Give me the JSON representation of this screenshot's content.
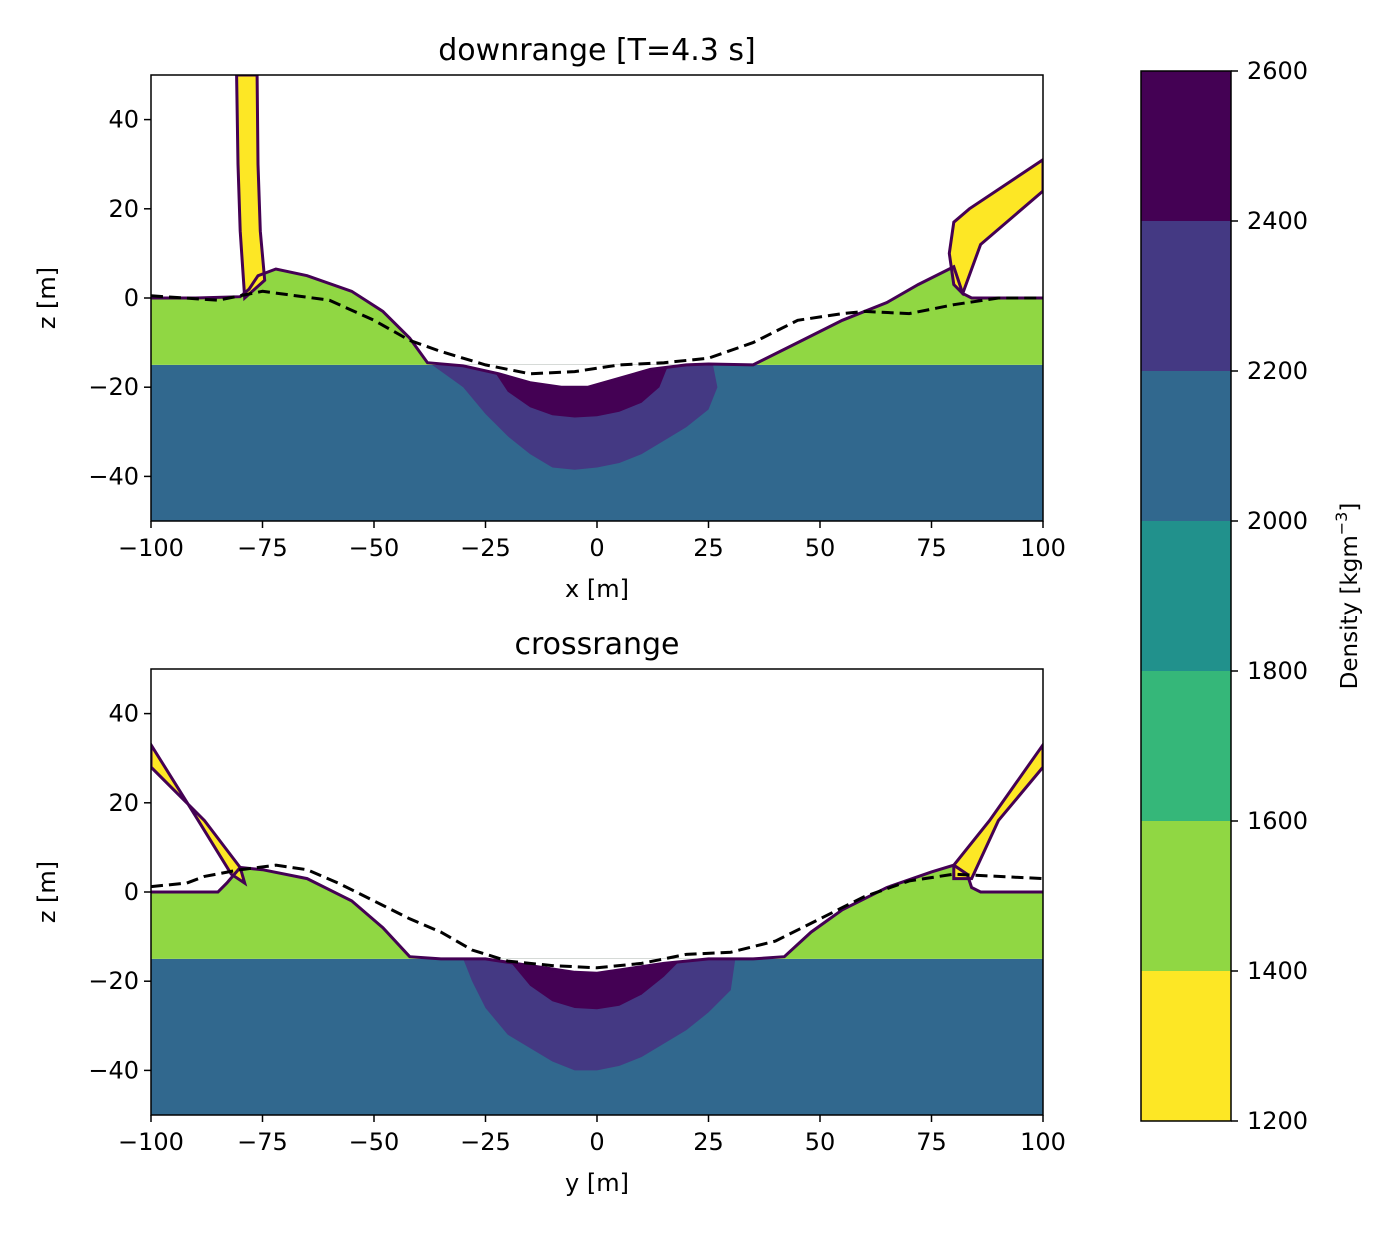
{
  "chart_data": [
    {
      "type": "heatmap",
      "title": "downrange [T=4.3 s]",
      "xlabel": "x [m]",
      "ylabel": "z [m]",
      "xlim": [
        -100,
        100
      ],
      "ylim": [
        -50,
        50
      ],
      "xticks": [
        -100,
        -75,
        -50,
        -25,
        0,
        25,
        50,
        75,
        100
      ],
      "yticks": [
        -40,
        -20,
        0,
        20,
        40
      ],
      "target_surface_z": -15,
      "pre_impact_surface_z": 0,
      "layer_density": {
        "surface_layer": 1500,
        "substrate": 2100
      },
      "compressed_zone": {
        "outer_density": 2300,
        "inner_density": 2500,
        "outer_boundary": [
          [
            -37,
            -15
          ],
          [
            -30,
            -20
          ],
          [
            -25,
            -26
          ],
          [
            -20,
            -31
          ],
          [
            -15,
            -35
          ],
          [
            -10,
            -38
          ],
          [
            -5,
            -38.5
          ],
          [
            0,
            -38
          ],
          [
            5,
            -37
          ],
          [
            10,
            -35
          ],
          [
            15,
            -32
          ],
          [
            20,
            -29
          ],
          [
            25,
            -25
          ],
          [
            27,
            -20
          ],
          [
            26,
            -15
          ]
        ],
        "inner_boundary": [
          [
            -24,
            -15
          ],
          [
            -20,
            -21
          ],
          [
            -15,
            -24.5
          ],
          [
            -10,
            -26.3
          ],
          [
            -5,
            -26.8
          ],
          [
            0,
            -26.5
          ],
          [
            5,
            -25.5
          ],
          [
            10,
            -23.5
          ],
          [
            14,
            -20
          ],
          [
            16,
            -15
          ]
        ]
      },
      "crater_profile": [
        [
          -100,
          0
        ],
        [
          -90,
          0
        ],
        [
          -80,
          0.3
        ],
        [
          -78,
          2
        ],
        [
          -76,
          5
        ],
        [
          -72,
          6.5
        ],
        [
          -65,
          5
        ],
        [
          -55,
          1.5
        ],
        [
          -48,
          -3
        ],
        [
          -42,
          -9
        ],
        [
          -38,
          -14.5
        ],
        [
          -30,
          -15.2
        ],
        [
          -22,
          -17
        ],
        [
          -15,
          -19
        ],
        [
          -8,
          -20
        ],
        [
          -2,
          -20
        ],
        [
          5,
          -18
        ],
        [
          12,
          -16
        ],
        [
          20,
          -15
        ],
        [
          25,
          -14.8
        ],
        [
          35,
          -15
        ],
        [
          45,
          -10
        ],
        [
          55,
          -5
        ],
        [
          65,
          -1
        ],
        [
          72,
          3
        ],
        [
          80,
          7
        ],
        [
          82,
          1
        ],
        [
          84,
          0
        ],
        [
          100,
          0
        ]
      ],
      "ejecta_curtains": [
        {
          "density": 1300,
          "polygon": [
            [
              -79,
              0
            ],
            [
              -80,
              15
            ],
            [
              -80.5,
              30
            ],
            [
              -80.8,
              50
            ],
            [
              -76.2,
              50
            ],
            [
              -76,
              30
            ],
            [
              -75.5,
              15
            ],
            [
              -74.5,
              4
            ]
          ]
        },
        {
          "density": 1300,
          "polygon": [
            [
              80,
              3
            ],
            [
              79,
              10
            ],
            [
              80,
              17
            ],
            [
              83.5,
              20
            ],
            [
              100,
              31
            ],
            [
              100,
              24
            ],
            [
              86,
              12
            ],
            [
              82,
              1
            ]
          ]
        }
      ],
      "reference_profile": [
        [
          -100,
          0.5
        ],
        [
          -85,
          -0.5
        ],
        [
          -75,
          1.5
        ],
        [
          -60,
          -0.5
        ],
        [
          -50,
          -5
        ],
        [
          -42,
          -9.5
        ],
        [
          -35,
          -12
        ],
        [
          -25,
          -15
        ],
        [
          -15,
          -17
        ],
        [
          -5,
          -16.5
        ],
        [
          5,
          -15
        ],
        [
          15,
          -14.5
        ],
        [
          25,
          -13.5
        ],
        [
          35,
          -10
        ],
        [
          45,
          -5
        ],
        [
          55,
          -3.5
        ],
        [
          60,
          -3
        ],
        [
          70,
          -3.5
        ],
        [
          80,
          -1.5
        ],
        [
          90,
          0
        ],
        [
          100,
          0
        ]
      ]
    },
    {
      "type": "heatmap",
      "title": "crossrange",
      "xlabel": "y [m]",
      "ylabel": "z [m]",
      "xlim": [
        -100,
        100
      ],
      "ylim": [
        -50,
        50
      ],
      "xticks": [
        -100,
        -75,
        -50,
        -25,
        0,
        25,
        50,
        75,
        100
      ],
      "yticks": [
        -40,
        -20,
        0,
        20,
        40
      ],
      "target_surface_z": -15,
      "pre_impact_surface_z": 0,
      "layer_density": {
        "surface_layer": 1500,
        "substrate": 2100
      },
      "compressed_zone": {
        "outer_density": 2300,
        "inner_density": 2500,
        "outer_boundary": [
          [
            -30,
            -15
          ],
          [
            -28,
            -20
          ],
          [
            -25,
            -26
          ],
          [
            -20,
            -32
          ],
          [
            -15,
            -35
          ],
          [
            -10,
            -38
          ],
          [
            -5,
            -40
          ],
          [
            0,
            -40
          ],
          [
            5,
            -39
          ],
          [
            10,
            -37
          ],
          [
            15,
            -34
          ],
          [
            20,
            -31
          ],
          [
            25,
            -27
          ],
          [
            30,
            -22
          ],
          [
            31,
            -15
          ]
        ],
        "inner_boundary": [
          [
            -20,
            -15
          ],
          [
            -15,
            -21
          ],
          [
            -10,
            -24.5
          ],
          [
            -5,
            -26
          ],
          [
            0,
            -26.3
          ],
          [
            5,
            -25.5
          ],
          [
            10,
            -23
          ],
          [
            15,
            -19
          ],
          [
            19,
            -15
          ]
        ]
      },
      "crater_profile": [
        [
          -100,
          0
        ],
        [
          -95,
          0
        ],
        [
          -85,
          0
        ],
        [
          -83,
          2
        ],
        [
          -80,
          5.5
        ],
        [
          -75,
          5
        ],
        [
          -65,
          3
        ],
        [
          -55,
          -2
        ],
        [
          -48,
          -8
        ],
        [
          -42,
          -14.5
        ],
        [
          -35,
          -15
        ],
        [
          -25,
          -15
        ],
        [
          -15,
          -16.5
        ],
        [
          -5,
          -18
        ],
        [
          0,
          -18.2
        ],
        [
          5,
          -17.5
        ],
        [
          15,
          -16
        ],
        [
          25,
          -15
        ],
        [
          35,
          -15
        ],
        [
          42,
          -14.5
        ],
        [
          48,
          -9
        ],
        [
          55,
          -4
        ],
        [
          65,
          1
        ],
        [
          75,
          4.5
        ],
        [
          80,
          6
        ],
        [
          83,
          4
        ],
        [
          84,
          1
        ],
        [
          86,
          0
        ],
        [
          100,
          0
        ]
      ],
      "ejecta_curtains": [
        {
          "density": 1300,
          "polygon": [
            [
              -100,
              33
            ],
            [
              -90,
              17
            ],
            [
              -82,
              4
            ],
            [
              -79,
              2
            ],
            [
              -80,
              5.5
            ],
            [
              -88,
              16
            ],
            [
              -100,
              28
            ]
          ]
        },
        {
          "density": 1300,
          "polygon": [
            [
              80,
              3
            ],
            [
              80,
              6
            ],
            [
              88,
              16
            ],
            [
              100,
              33
            ],
            [
              100,
              28
            ],
            [
              90,
              16
            ],
            [
              84,
              3
            ]
          ]
        }
      ],
      "reference_profile": [
        [
          -100,
          1.2
        ],
        [
          -92,
          2
        ],
        [
          -88,
          3.5
        ],
        [
          -80,
          5
        ],
        [
          -72,
          6
        ],
        [
          -65,
          5
        ],
        [
          -58,
          2
        ],
        [
          -50,
          -2
        ],
        [
          -42,
          -6
        ],
        [
          -35,
          -9
        ],
        [
          -28,
          -13
        ],
        [
          -20,
          -15.5
        ],
        [
          -10,
          -16.5
        ],
        [
          0,
          -17
        ],
        [
          10,
          -16
        ],
        [
          20,
          -14
        ],
        [
          30,
          -13.5
        ],
        [
          40,
          -11
        ],
        [
          50,
          -6
        ],
        [
          55,
          -3.5
        ],
        [
          60,
          -1
        ],
        [
          70,
          2.5
        ],
        [
          80,
          4
        ],
        [
          90,
          3.5
        ],
        [
          100,
          3
        ]
      ]
    }
  ],
  "colorbar": {
    "label": "Density [kgm",
    "label_exponent": "−3",
    "label_suffix": "]",
    "ticks": [
      "1200",
      "1400",
      "1600",
      "1800",
      "2000",
      "2200",
      "2400",
      "2600"
    ],
    "levels": [
      1200,
      1400,
      1600,
      1800,
      2000,
      2200,
      2400,
      2600
    ],
    "colors": [
      "#fde725",
      "#90d743",
      "#35b779",
      "#21918c",
      "#31688e",
      "#443983",
      "#440154"
    ]
  },
  "styles": {
    "outline_color": "#440154",
    "reference_color": "#000000",
    "surface_layer_color": "#90d743",
    "substrate_color": "#31688e",
    "compressed_outer_color": "#443983",
    "compressed_inner_color": "#440154",
    "ejecta_color": "#fde725"
  }
}
